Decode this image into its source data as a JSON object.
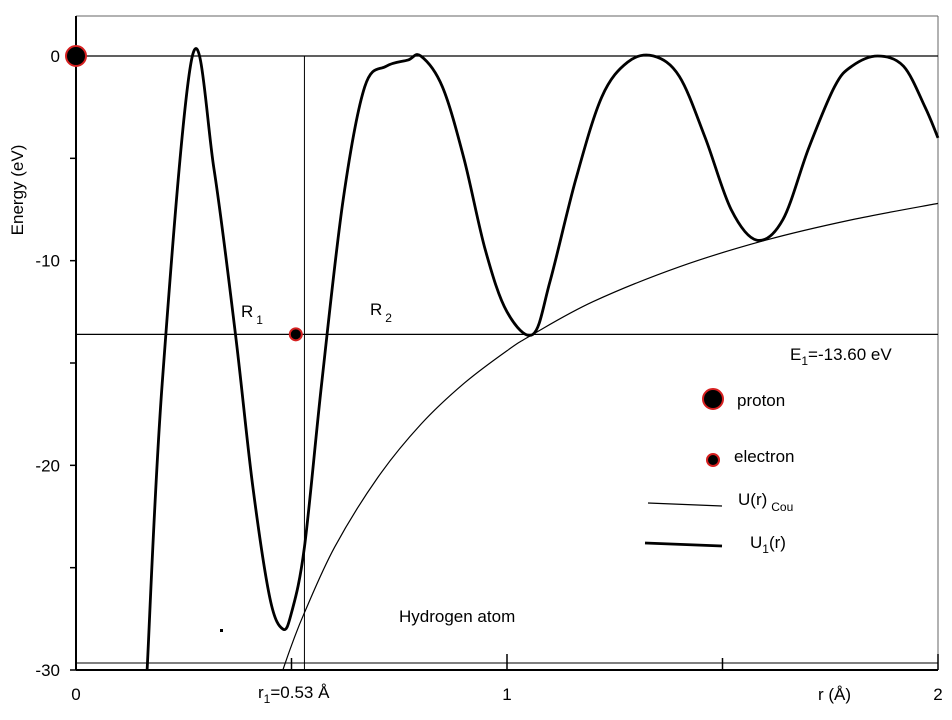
{
  "chart_data": {
    "type": "line",
    "title": "",
    "xlabel": "r (Å)",
    "ylabel": "Energy (eV)",
    "xlim": [
      0,
      2
    ],
    "ylim": [
      -30,
      0
    ],
    "x_ticks": [
      0,
      1,
      2
    ],
    "x_tick_labels": [
      "0",
      "1",
      "2"
    ],
    "y_ticks": [
      0,
      -10,
      -20,
      -30
    ],
    "y_tick_labels": [
      "0",
      "-10",
      "-20",
      "-30"
    ],
    "grid": false,
    "legend_position": "right",
    "series": [
      {
        "name": "U(r) Cou",
        "style": "thin",
        "x": [
          0.48,
          0.5,
          0.53,
          0.6,
          0.7,
          0.8,
          0.9,
          1.0,
          1.06,
          1.2,
          1.4,
          1.6,
          1.8,
          2.0
        ],
        "y": [
          -30.0,
          -28.8,
          -27.2,
          -24.0,
          -20.6,
          -18.0,
          -16.0,
          -14.4,
          -13.6,
          -12.0,
          -10.3,
          -9.0,
          -8.0,
          -7.2
        ]
      },
      {
        "name": "U1(r)",
        "style": "thick",
        "x": [
          0.165,
          0.2,
          0.27,
          0.32,
          0.37,
          0.41,
          0.45,
          0.48,
          0.5,
          0.53,
          0.57,
          0.62,
          0.67,
          0.72,
          0.77,
          0.8,
          0.85,
          0.9,
          0.95,
          1.0,
          1.06,
          1.1,
          1.16,
          1.22,
          1.28,
          1.34,
          1.4,
          1.46,
          1.52,
          1.58,
          1.64,
          1.7,
          1.76,
          1.8,
          1.86,
          1.92,
          1.97,
          2.0
        ],
        "y": [
          -30.0,
          -16.0,
          0.0,
          -5.5,
          -13.6,
          -21.0,
          -26.5,
          -28.0,
          -27.2,
          -24.0,
          -16.0,
          -7.0,
          -1.5,
          -0.5,
          -0.2,
          0.0,
          -1.5,
          -5.0,
          -9.5,
          -12.5,
          -13.6,
          -11.0,
          -6.0,
          -2.0,
          -0.3,
          0.0,
          -1.0,
          -4.0,
          -7.5,
          -9.0,
          -8.0,
          -4.5,
          -1.5,
          -0.5,
          0.0,
          -0.5,
          -2.5,
          -4.0
        ]
      },
      {
        "name": "E1 level",
        "style": "thin",
        "x": [
          0,
          2
        ],
        "y": [
          -13.6,
          -13.6
        ]
      },
      {
        "name": "zero level",
        "style": "thin",
        "x": [
          0,
          2
        ],
        "y": [
          0,
          0
        ]
      }
    ],
    "vline": {
      "x": 0.53,
      "ymin": -30,
      "ymax": 0
    },
    "markers": [
      {
        "name": "proton",
        "x": 0,
        "y": 0,
        "size": "large"
      },
      {
        "name": "electron",
        "x": 0.51,
        "y": -13.6,
        "size": "small"
      }
    ],
    "annotations": {
      "r1_main": "r",
      "r1_sub": "1",
      "r1_rest": "=0.53 Å",
      "R1_main": "R",
      "R1_sub": "1",
      "R2_main": "R",
      "R2_sub": "2",
      "E1_main": "E",
      "E1_sub": "1",
      "E1_rest": "=-13.60 eV",
      "caption": "Hydrogen atom"
    },
    "legend": {
      "proton_label": "proton",
      "electron_label": "electron",
      "coulomb_main": "U(r)",
      "coulomb_sub": "Cou",
      "u1_main": "U",
      "u1_sub": "1",
      "u1_rest": "(r)"
    },
    "colors": {
      "line": "#000000",
      "marker_fill": "#000000",
      "marker_edge": "#d62020"
    }
  }
}
